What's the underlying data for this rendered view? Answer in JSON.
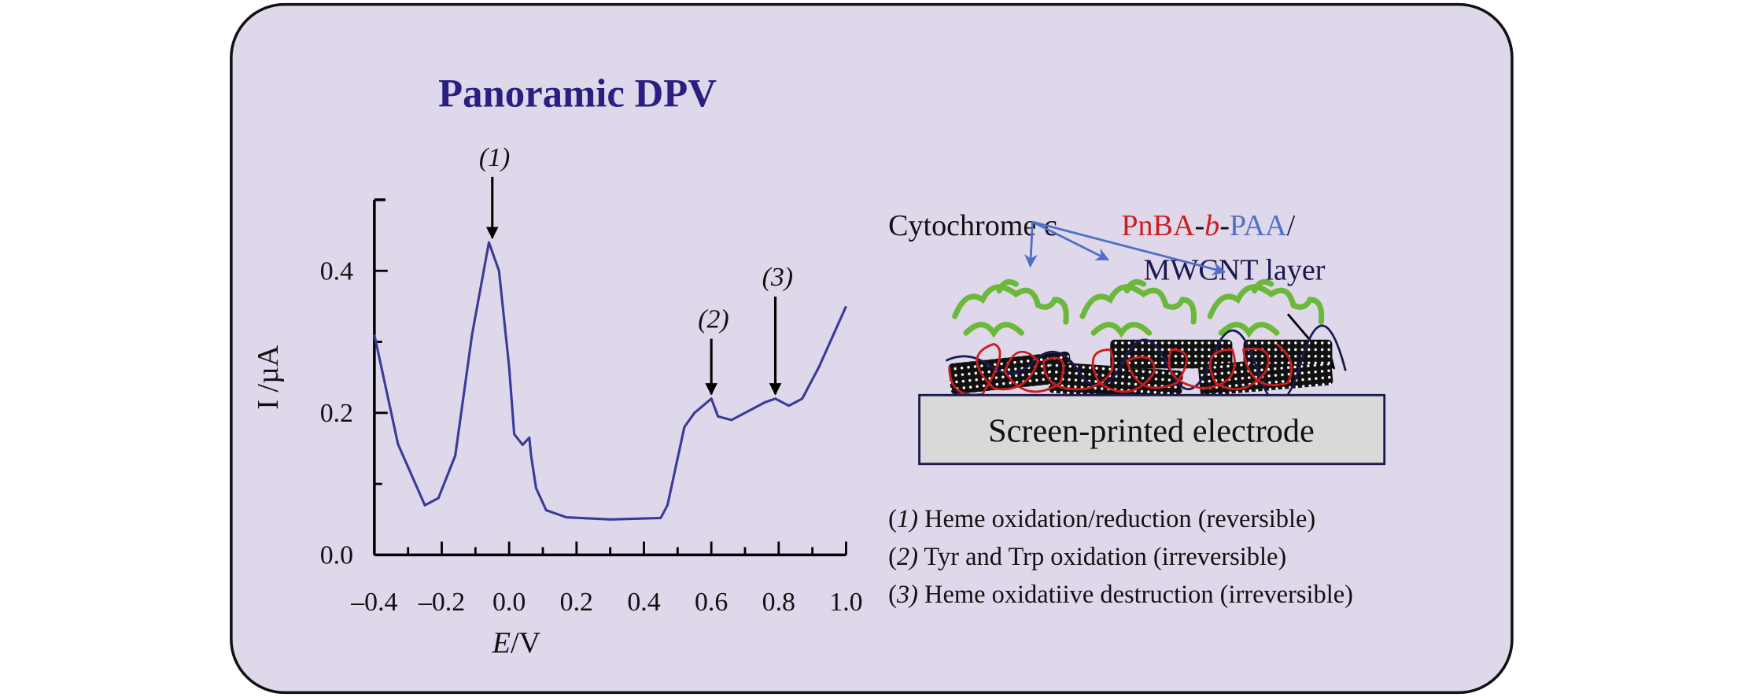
{
  "colors": {
    "panel_bg": "#ded8ea",
    "title": "#2a1f80",
    "curve": "#3b3a9a",
    "blue_arrow": "#4f6fc8",
    "red_polymer": "#cc1d1d",
    "navy": "#1b1850",
    "protein": "#6cb83a",
    "electrode_bg": "#d9d9d9"
  },
  "chart_data": {
    "type": "line",
    "title": "Panoramic DPV",
    "xlabel_italic": "E",
    "xlabel_unit": "/V",
    "ylabel": "I /µA",
    "xlim": [
      -0.4,
      1.0
    ],
    "ylim": [
      0.0,
      0.5
    ],
    "xticks": [
      "–0.4",
      "–0.2",
      "0.0",
      "0.2",
      "0.4",
      "0.6",
      "0.8",
      "1.0"
    ],
    "xtick_values": [
      -0.4,
      -0.2,
      0.0,
      0.2,
      0.4,
      0.6,
      0.8,
      1.0
    ],
    "yticks": [
      "0.0",
      "0.2",
      "0.4"
    ],
    "ytick_values": [
      0.0,
      0.2,
      0.4
    ],
    "grid": false,
    "series": [
      {
        "x": [
          -0.4,
          -0.33,
          -0.25,
          -0.21,
          -0.16,
          -0.11,
          -0.06,
          -0.03,
          0.0,
          0.015,
          0.04,
          0.06,
          0.065,
          0.08,
          0.11,
          0.17,
          0.3,
          0.45,
          0.47,
          0.52,
          0.55,
          0.6,
          0.62,
          0.66,
          0.76,
          0.79,
          0.83,
          0.87,
          0.92,
          1.0
        ],
        "y": [
          0.31,
          0.156,
          0.07,
          0.08,
          0.14,
          0.31,
          0.44,
          0.4,
          0.265,
          0.17,
          0.155,
          0.165,
          0.14,
          0.094,
          0.063,
          0.053,
          0.05,
          0.052,
          0.07,
          0.18,
          0.2,
          0.22,
          0.195,
          0.19,
          0.215,
          0.22,
          0.21,
          0.22,
          0.265,
          0.35
        ]
      }
    ],
    "annotations": [
      {
        "label": "(1)",
        "x": -0.05,
        "y": 0.44
      },
      {
        "label": "(2)",
        "x": 0.6,
        "y": 0.22
      },
      {
        "label": "(3)",
        "x": 0.79,
        "y": 0.22
      }
    ]
  },
  "diagram": {
    "cytochrome_label": "Cytochrome c",
    "polymer_label": {
      "part1": "PnBA",
      "dash1": "-",
      "part2": "b",
      "dash2": "-",
      "part3": "PAA",
      "slash": "/"
    },
    "layer_label": "MWCNT layer",
    "electrode_label": "Screen-printed electrode"
  },
  "legend": [
    {
      "num": "1",
      "text": " Heme oxidation/reduction (reversible)"
    },
    {
      "num": "2",
      "text": " Tyr and Trp oxidation (irreversible)"
    },
    {
      "num": "3",
      "text": " Heme oxidatiive destruction (irreversible)"
    }
  ]
}
